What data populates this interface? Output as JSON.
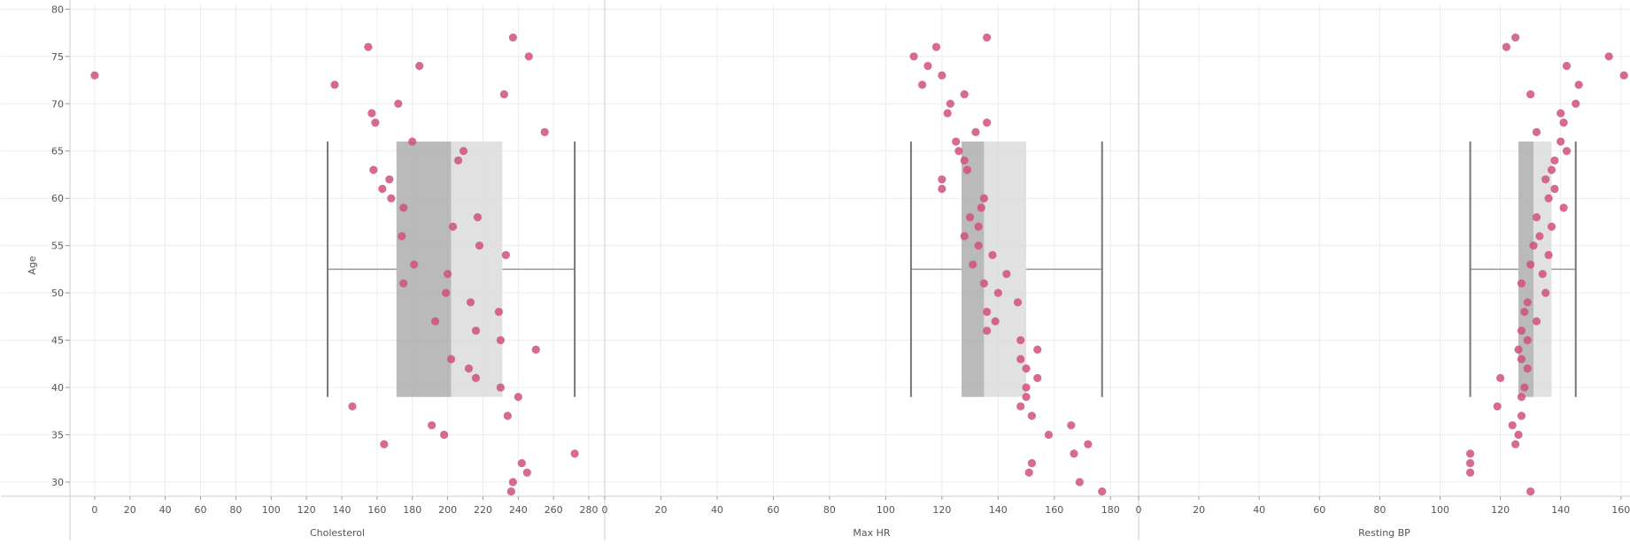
{
  "chart_data": {
    "type": "scatter",
    "subtype": "box-plot overlay with jittered points",
    "ylabel": "Age",
    "ylim": [
      28.5,
      80.5
    ],
    "y_ticks": [
      30,
      35,
      40,
      45,
      50,
      55,
      60,
      65,
      70,
      75,
      80
    ],
    "grid": true,
    "colors": {
      "point": "#d0517a",
      "box_lower": "#a9a9a9",
      "box_upper": "#d9d9d9",
      "whisker": "#777777",
      "grid": "#ececec",
      "divider": "#cccccc"
    },
    "panels": [
      {
        "xlabel": "Cholesterol",
        "xlim": [
          -14,
          289
        ],
        "x_ticks": [
          0,
          20,
          40,
          60,
          80,
          100,
          120,
          140,
          160,
          180,
          200,
          220,
          240,
          260,
          280
        ],
        "box": {
          "min": 132,
          "q1": 171,
          "median": 202,
          "q3": 231,
          "max": 272,
          "age_low": 39,
          "age_high": 66,
          "age_mid": 52.5
        },
        "points": [
          {
            "x": 0,
            "y": 73
          },
          {
            "x": 155,
            "y": 76
          },
          {
            "x": 136,
            "y": 72
          },
          {
            "x": 184,
            "y": 74
          },
          {
            "x": 237,
            "y": 77
          },
          {
            "x": 246,
            "y": 75
          },
          {
            "x": 232,
            "y": 71
          },
          {
            "x": 172,
            "y": 70
          },
          {
            "x": 157,
            "y": 69
          },
          {
            "x": 159,
            "y": 68
          },
          {
            "x": 255,
            "y": 67
          },
          {
            "x": 180,
            "y": 66
          },
          {
            "x": 209,
            "y": 65
          },
          {
            "x": 206,
            "y": 64
          },
          {
            "x": 158,
            "y": 63
          },
          {
            "x": 167,
            "y": 62
          },
          {
            "x": 163,
            "y": 61
          },
          {
            "x": 168,
            "y": 60
          },
          {
            "x": 175,
            "y": 59
          },
          {
            "x": 217,
            "y": 58
          },
          {
            "x": 203,
            "y": 57
          },
          {
            "x": 174,
            "y": 56
          },
          {
            "x": 218,
            "y": 55
          },
          {
            "x": 233,
            "y": 54
          },
          {
            "x": 181,
            "y": 53
          },
          {
            "x": 200,
            "y": 52
          },
          {
            "x": 175,
            "y": 51
          },
          {
            "x": 199,
            "y": 50
          },
          {
            "x": 213,
            "y": 49
          },
          {
            "x": 229,
            "y": 48
          },
          {
            "x": 193,
            "y": 47
          },
          {
            "x": 216,
            "y": 46
          },
          {
            "x": 230,
            "y": 45
          },
          {
            "x": 250,
            "y": 44
          },
          {
            "x": 202,
            "y": 43
          },
          {
            "x": 212,
            "y": 42
          },
          {
            "x": 216,
            "y": 41
          },
          {
            "x": 230,
            "y": 40
          },
          {
            "x": 240,
            "y": 39
          },
          {
            "x": 146,
            "y": 38
          },
          {
            "x": 234,
            "y": 37
          },
          {
            "x": 191,
            "y": 36
          },
          {
            "x": 198,
            "y": 35
          },
          {
            "x": 164,
            "y": 34
          },
          {
            "x": 272,
            "y": 33
          },
          {
            "x": 242,
            "y": 32
          },
          {
            "x": 245,
            "y": 31
          },
          {
            "x": 237,
            "y": 30
          },
          {
            "x": 236,
            "y": 29
          }
        ]
      },
      {
        "xlabel": "Max HR",
        "xlim": [
          0,
          190
        ],
        "x_ticks": [
          0,
          20,
          40,
          60,
          80,
          100,
          120,
          140,
          160,
          180
        ],
        "box": {
          "min": 109,
          "q1": 127,
          "median": 135,
          "q3": 150,
          "max": 177,
          "age_low": 39,
          "age_high": 66,
          "age_mid": 52.5
        },
        "points": [
          {
            "x": 136,
            "y": 77
          },
          {
            "x": 118,
            "y": 76
          },
          {
            "x": 110,
            "y": 75
          },
          {
            "x": 115,
            "y": 74
          },
          {
            "x": 120,
            "y": 73
          },
          {
            "x": 113,
            "y": 72
          },
          {
            "x": 128,
            "y": 71
          },
          {
            "x": 123,
            "y": 70
          },
          {
            "x": 122,
            "y": 69
          },
          {
            "x": 136,
            "y": 68
          },
          {
            "x": 132,
            "y": 67
          },
          {
            "x": 125,
            "y": 66
          },
          {
            "x": 126,
            "y": 65
          },
          {
            "x": 128,
            "y": 64
          },
          {
            "x": 129,
            "y": 63
          },
          {
            "x": 120,
            "y": 62
          },
          {
            "x": 120,
            "y": 61
          },
          {
            "x": 135,
            "y": 60
          },
          {
            "x": 134,
            "y": 59
          },
          {
            "x": 130,
            "y": 58
          },
          {
            "x": 133,
            "y": 57
          },
          {
            "x": 128,
            "y": 56
          },
          {
            "x": 133,
            "y": 55
          },
          {
            "x": 138,
            "y": 54
          },
          {
            "x": 131,
            "y": 53
          },
          {
            "x": 143,
            "y": 52
          },
          {
            "x": 135,
            "y": 51
          },
          {
            "x": 140,
            "y": 50
          },
          {
            "x": 147,
            "y": 49
          },
          {
            "x": 136,
            "y": 48
          },
          {
            "x": 139,
            "y": 47
          },
          {
            "x": 136,
            "y": 46
          },
          {
            "x": 148,
            "y": 45
          },
          {
            "x": 154,
            "y": 44
          },
          {
            "x": 148,
            "y": 43
          },
          {
            "x": 150,
            "y": 42
          },
          {
            "x": 154,
            "y": 41
          },
          {
            "x": 150,
            "y": 40
          },
          {
            "x": 150,
            "y": 39
          },
          {
            "x": 148,
            "y": 38
          },
          {
            "x": 152,
            "y": 37
          },
          {
            "x": 166,
            "y": 36
          },
          {
            "x": 158,
            "y": 35
          },
          {
            "x": 172,
            "y": 34
          },
          {
            "x": 167,
            "y": 33
          },
          {
            "x": 152,
            "y": 32
          },
          {
            "x": 151,
            "y": 31
          },
          {
            "x": 169,
            "y": 30
          },
          {
            "x": 177,
            "y": 29
          }
        ]
      },
      {
        "xlabel": "Resting BP",
        "xlim": [
          0,
          163
        ],
        "x_ticks": [
          0,
          20,
          40,
          60,
          80,
          100,
          120,
          140,
          160
        ],
        "box": {
          "min": 110,
          "q1": 126,
          "median": 131,
          "q3": 137,
          "max": 145,
          "age_low": 39,
          "age_high": 66,
          "age_mid": 52.5
        },
        "points": [
          {
            "x": 125,
            "y": 77
          },
          {
            "x": 122,
            "y": 76
          },
          {
            "x": 156,
            "y": 75
          },
          {
            "x": 142,
            "y": 74
          },
          {
            "x": 161,
            "y": 73
          },
          {
            "x": 146,
            "y": 72
          },
          {
            "x": 130,
            "y": 71
          },
          {
            "x": 145,
            "y": 70
          },
          {
            "x": 140,
            "y": 69
          },
          {
            "x": 141,
            "y": 68
          },
          {
            "x": 132,
            "y": 67
          },
          {
            "x": 140,
            "y": 66
          },
          {
            "x": 142,
            "y": 65
          },
          {
            "x": 138,
            "y": 64
          },
          {
            "x": 137,
            "y": 63
          },
          {
            "x": 135,
            "y": 62
          },
          {
            "x": 138,
            "y": 61
          },
          {
            "x": 136,
            "y": 60
          },
          {
            "x": 141,
            "y": 59
          },
          {
            "x": 132,
            "y": 58
          },
          {
            "x": 137,
            "y": 57
          },
          {
            "x": 133,
            "y": 56
          },
          {
            "x": 131,
            "y": 55
          },
          {
            "x": 136,
            "y": 54
          },
          {
            "x": 130,
            "y": 53
          },
          {
            "x": 134,
            "y": 52
          },
          {
            "x": 127,
            "y": 51
          },
          {
            "x": 135,
            "y": 50
          },
          {
            "x": 129,
            "y": 49
          },
          {
            "x": 128,
            "y": 48
          },
          {
            "x": 132,
            "y": 47
          },
          {
            "x": 127,
            "y": 46
          },
          {
            "x": 129,
            "y": 45
          },
          {
            "x": 126,
            "y": 44
          },
          {
            "x": 127,
            "y": 43
          },
          {
            "x": 129,
            "y": 42
          },
          {
            "x": 120,
            "y": 41
          },
          {
            "x": 128,
            "y": 40
          },
          {
            "x": 127,
            "y": 39
          },
          {
            "x": 119,
            "y": 38
          },
          {
            "x": 127,
            "y": 37
          },
          {
            "x": 124,
            "y": 36
          },
          {
            "x": 126,
            "y": 35
          },
          {
            "x": 125,
            "y": 34
          },
          {
            "x": 110,
            "y": 33
          },
          {
            "x": 110,
            "y": 32
          },
          {
            "x": 110,
            "y": 31
          },
          {
            "x": 130,
            "y": 29
          }
        ]
      }
    ]
  }
}
